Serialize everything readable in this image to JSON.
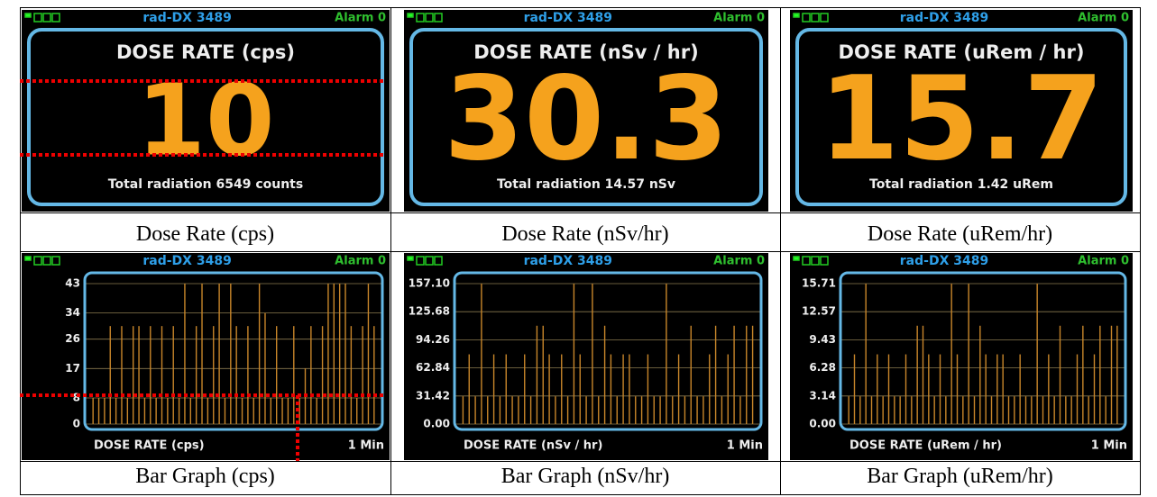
{
  "panels": [
    {
      "device": "rad-DX 3489",
      "alarm": "Alarm 0",
      "title": "DOSE RATE (cps)",
      "value": "10",
      "total": "Total radiation 6549 counts",
      "caption": "Dose Rate (cps)"
    },
    {
      "device": "rad-DX 3489",
      "alarm": "Alarm 0",
      "title": "DOSE RATE (nSv / hr)",
      "value": "30.3",
      "total": "Total radiation  14.57 nSv",
      "caption": "Dose Rate (nSv/hr)"
    },
    {
      "device": "rad-DX 3489",
      "alarm": "Alarm 0",
      "title": "DOSE RATE (uRem / hr)",
      "value": "15.7",
      "total": "Total radiation  1.42 uRem",
      "caption": "Dose Rate (uRem/hr)"
    }
  ],
  "graphs": [
    {
      "device": "rad-DX 3489",
      "alarm": "Alarm 0",
      "yticks": [
        0,
        8,
        17,
        26,
        34,
        43
      ],
      "label": "DOSE RATE (cps)",
      "window": "1 Min",
      "caption": "Bar Graph (cps)",
      "bars": [
        8,
        8,
        8,
        30,
        8,
        30,
        8,
        30,
        30,
        8,
        30,
        8,
        30,
        8,
        30,
        8,
        43,
        8,
        30,
        43,
        8,
        30,
        43,
        8,
        43,
        30,
        8,
        30,
        8,
        43,
        34,
        8,
        30,
        8,
        8,
        30,
        8,
        17,
        30,
        8,
        30,
        43,
        43,
        43,
        43,
        30,
        8,
        30,
        43,
        30
      ]
    },
    {
      "device": "rad-DX 3489",
      "alarm": "Alarm 0",
      "yticks": [
        {
          "value": 0,
          "label": "0.00"
        },
        31.42,
        62.84,
        94.26,
        125.68,
        {
          "value": 157.1,
          "label": "157.10"
        }
      ],
      "label": "DOSE RATE (nSv / hr)",
      "window": "1 Min",
      "caption": "Bar Graph (nSv/hr)",
      "bars": [
        31,
        78,
        31,
        157,
        31,
        78,
        31,
        78,
        31,
        31,
        78,
        31,
        110,
        110,
        78,
        31,
        78,
        31,
        157,
        78,
        31,
        157,
        31,
        110,
        78,
        31,
        78,
        78,
        31,
        31,
        78,
        31,
        31,
        157,
        31,
        78,
        31,
        110,
        31,
        31,
        78,
        110,
        31,
        78,
        110,
        31,
        110,
        110
      ]
    },
    {
      "device": "rad-DX 3489",
      "alarm": "Alarm 0",
      "yticks": [
        {
          "value": 0,
          "label": "0.00"
        },
        3.14,
        6.28,
        9.43,
        12.57,
        15.71
      ],
      "label": "DOSE RATE (uRem / hr)",
      "window": "1 Min",
      "caption": "Bar Graph (uRem/hr)",
      "bars": [
        3.1,
        7.8,
        3.1,
        15.7,
        3.1,
        7.8,
        3.1,
        7.8,
        3.1,
        3.1,
        7.8,
        3.1,
        11,
        11,
        7.8,
        3.1,
        7.8,
        3.1,
        15.7,
        7.8,
        3.1,
        15.7,
        3.1,
        11,
        7.8,
        3.1,
        7.8,
        7.8,
        3.1,
        3.1,
        7.8,
        3.1,
        3.1,
        15.7,
        3.1,
        7.8,
        3.1,
        11,
        3.1,
        3.1,
        7.8,
        11,
        3.1,
        7.8,
        11,
        3.1,
        11,
        11
      ]
    }
  ]
}
